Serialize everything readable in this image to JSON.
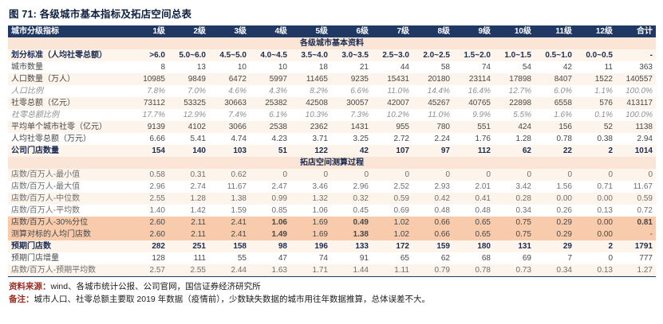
{
  "title": "图 71:  各级城市基本指标及拓店空间总表",
  "table": {
    "columns": [
      "城市分级指标",
      "1级",
      "2级",
      "3级",
      "4级",
      "5级",
      "6级",
      "7级",
      "8级",
      "9级",
      "10级",
      "11级",
      "12级",
      "合计"
    ],
    "groups": [
      {
        "section": "各级城市基本资料",
        "rows": [
          {
            "label": "划分标准（人均社零总额）",
            "style": "bold",
            "values": [
              ">6.0",
              "5.0~6.0",
              "4.5~5.0",
              "4.0~4.5",
              "3.5~4.0",
              "3.0~3.5",
              "2.5~3.0",
              "2.0~2.5",
              "1.5~2.0",
              "1.0~1.5",
              "0.5~1.0",
              "0.0~0.5",
              "-"
            ]
          },
          {
            "label": "城市数量",
            "style": "normal",
            "values": [
              "8",
              "13",
              "10",
              "10",
              "18",
              "21",
              "44",
              "58",
              "74",
              "54",
              "42",
              "11",
              "363"
            ]
          },
          {
            "label": "人口数量（万人）",
            "style": "normal",
            "values": [
              "10985",
              "9849",
              "6472",
              "5997",
              "11465",
              "9235",
              "15431",
              "20180",
              "23114",
              "17898",
              "8407",
              "1522",
              "140557"
            ]
          },
          {
            "label": "人口比例",
            "style": "italic",
            "values": [
              "7.8%",
              "7.0%",
              "4.6%",
              "4.3%",
              "8.2%",
              "6.6%",
              "11.0%",
              "14.4%",
              "16.4%",
              "12.7%",
              "6.0%",
              "1.1%",
              "100.0%"
            ]
          },
          {
            "label": "社零总额（亿元）",
            "style": "normal",
            "values": [
              "73112",
              "53325",
              "30663",
              "25382",
              "42508",
              "30057",
              "42007",
              "45267",
              "40765",
              "22898",
              "6558",
              "576",
              "413117"
            ]
          },
          {
            "label": "社零总额比例",
            "style": "italic",
            "values": [
              "17.7%",
              "12.9%",
              "7.4%",
              "6.1%",
              "10.3%",
              "7.3%",
              "10.2%",
              "11.0%",
              "9.9%",
              "5.5%",
              "1.6%",
              "0.1%",
              "100.0%"
            ]
          },
          {
            "label": "平均单个城市社零（亿元）",
            "style": "normal",
            "values": [
              "9139",
              "4102",
              "3066",
              "2538",
              "2362",
              "1431",
              "955",
              "780",
              "551",
              "424",
              "156",
              "52",
              "1138"
            ]
          },
          {
            "label": "人均社零总额（万元）",
            "style": "normal",
            "values": [
              "6.66",
              "5.41",
              "4.74",
              "4.23",
              "3.71",
              "3.25",
              "2.72",
              "2.24",
              "1.76",
              "1.28",
              "0.78",
              "0.38",
              "2.94"
            ]
          },
          {
            "label": "公司门店数量",
            "style": "bold",
            "values": [
              "154",
              "140",
              "103",
              "51",
              "122",
              "42",
              "107",
              "97",
              "112",
              "62",
              "22",
              "2",
              "1014"
            ]
          }
        ]
      },
      {
        "section": "拓店空间测算过程",
        "rows": [
          {
            "label": "店数/百万人-最小值",
            "style": "muted",
            "values": [
              "0.58",
              "0.31",
              "0.62",
              "0",
              "0",
              "0",
              "0",
              "0",
              "0",
              "0",
              "0",
              "0",
              "0"
            ]
          },
          {
            "label": "店数/百万人-最大值",
            "style": "muted",
            "values": [
              "2.96",
              "2.74",
              "11.67",
              "2.47",
              "3.46",
              "2.96",
              "2.52",
              "2.93",
              "2.01",
              "3.42",
              "1.56",
              "0.71",
              "11.67"
            ]
          },
          {
            "label": "店数/百万人-中位数",
            "style": "muted",
            "values": [
              "2.55",
              "1.28",
              "1.38",
              "0.99",
              "1.32",
              "0.32",
              "0.59",
              "0.42",
              "0.41",
              "0.28",
              "0.00",
              "0.00",
              "0.59"
            ]
          },
          {
            "label": "店数/百万人-平均数",
            "style": "muted",
            "values": [
              "1.40",
              "1.42",
              "1.59",
              "0.85",
              "1.06",
              "0.45",
              "0.69",
              "0.48",
              "0.48",
              "0.34",
              "0.26",
              "0.13",
              "0.72"
            ]
          },
          {
            "label": "店数/百万人-30%分位",
            "style": "highlight",
            "emphasis": {
              "3": "bold",
              "5": "bold",
              "12": "bold"
            },
            "values": [
              "2.60",
              "2.11",
              "2.41",
              "1.06",
              "1.69",
              "0.49",
              "1.02",
              "0.66",
              "0.65",
              "0.75",
              "0.29",
              "0.00",
              "0.81"
            ]
          },
          {
            "label": "测算对标的人均门店数",
            "style": "highlight",
            "emphasis": {
              "3": "red",
              "5": "red"
            },
            "values": [
              "2.60",
              "2.11",
              "2.41",
              "1.49",
              "1.69",
              "1.38",
              "1.02",
              "0.66",
              "0.65",
              "0.75",
              "0.29",
              "0.00",
              "-"
            ]
          },
          {
            "label": "预期门店数",
            "style": "bold",
            "values": [
              "282",
              "251",
              "158",
              "98",
              "196",
              "133",
              "172",
              "159",
              "180",
              "131",
              "29",
              "2",
              "1791"
            ]
          },
          {
            "label": "预期门店增量",
            "style": "normal",
            "values": [
              "128",
              "111",
              "55",
              "47",
              "74",
              "91",
              "65",
              "62",
              "68",
              "69",
              "7",
              "0",
              "777"
            ]
          },
          {
            "label": "店数/百万人-预期平均数",
            "style": "muted",
            "values": [
              "2.57",
              "2.55",
              "2.44",
              "1.63",
              "1.71",
              "1.44",
              "1.11",
              "0.79",
              "0.78",
              "0.73",
              "0.34",
              "0.13",
              "1.27"
            ]
          }
        ]
      }
    ]
  },
  "footer": {
    "source_label": "资料来源：",
    "source_text": "wind、各城市统计公报、公司官网，国信证券经济研究所",
    "note_label": "备注：",
    "note_text": "城市人口、社零总额主要取 2019 年数据（疫情前），少数缺失数据的城市用往年数据推算，总体误差不大。"
  }
}
